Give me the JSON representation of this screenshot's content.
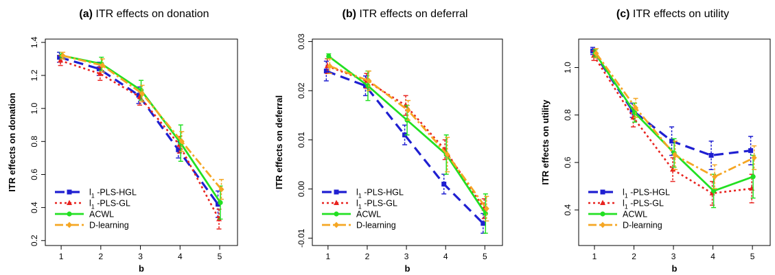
{
  "colors": {
    "hgl": "#1f1fd1",
    "gl": "#e8231f",
    "acwl": "#22e022",
    "dlearn": "#f5a623",
    "axis": "#000000"
  },
  "legend_labels": {
    "hgl": {
      "sym": "l",
      "sub": "1",
      "rest": " -PLS-HGL"
    },
    "gl": {
      "sym": "l",
      "sub": "1",
      "rest": " -PLS-GL"
    },
    "acwl": {
      "text": "ACWL"
    },
    "dlearn": {
      "text": "D-learning"
    }
  },
  "chart_data": [
    {
      "type": "line",
      "title_prefix": "(a)",
      "title": " ITR effects on donation",
      "xlabel": "b",
      "ylabel": "ITR effects on donation",
      "x": [
        1,
        2,
        3,
        4,
        5
      ],
      "xticks": [
        "1",
        "2",
        "3",
        "4",
        "5"
      ],
      "ylim": [
        0.17,
        1.42
      ],
      "yticks": [
        0.2,
        0.4,
        0.6,
        0.8,
        1.0,
        1.2,
        1.4
      ],
      "ytick_labels": [
        "0.2",
        "0.4",
        "0.6",
        "0.8",
        "1.0",
        "1.2",
        "1.4"
      ],
      "legend": "bottom-left",
      "series": [
        {
          "key": "hgl",
          "values": [
            1.31,
            1.24,
            1.08,
            0.75,
            0.42
          ],
          "err": [
            0.03,
            0.04,
            0.05,
            0.05,
            0.08
          ]
        },
        {
          "key": "gl",
          "values": [
            1.29,
            1.21,
            1.07,
            0.78,
            0.33
          ],
          "err": [
            0.03,
            0.04,
            0.05,
            0.05,
            0.06
          ]
        },
        {
          "key": "acwl",
          "values": [
            1.32,
            1.27,
            1.11,
            0.79,
            0.43
          ],
          "err": [
            0.02,
            0.04,
            0.06,
            0.11,
            0.1
          ]
        },
        {
          "key": "dlearn",
          "values": [
            1.32,
            1.26,
            1.09,
            0.8,
            0.51
          ],
          "err": [
            0.02,
            0.04,
            0.05,
            0.06,
            0.06
          ]
        }
      ]
    },
    {
      "type": "line",
      "title_prefix": "(b)",
      "title": " ITR effects on deferral",
      "xlabel": "b",
      "ylabel": "ITR effects on deferral",
      "x": [
        1,
        2,
        3,
        4,
        5
      ],
      "xticks": [
        "1",
        "2",
        "3",
        "4",
        "5"
      ],
      "ylim": [
        -0.0115,
        0.0305
      ],
      "yticks": [
        -0.01,
        0.0,
        0.01,
        0.02,
        0.03
      ],
      "ytick_labels": [
        "-0.01",
        "0.00",
        "0.01",
        "0.02",
        "0.03"
      ],
      "legend": "bottom-left",
      "series": [
        {
          "key": "hgl",
          "values": [
            0.024,
            0.021,
            0.011,
            0.001,
            -0.007
          ],
          "err": [
            0.002,
            0.002,
            0.002,
            0.002,
            0.002
          ]
        },
        {
          "key": "gl",
          "values": [
            0.025,
            0.022,
            0.017,
            0.008,
            -0.004
          ],
          "err": [
            0.0015,
            0.0015,
            0.002,
            0.002,
            0.002
          ]
        },
        {
          "key": "acwl",
          "values": [
            0.027,
            0.021,
            0.014,
            0.007,
            -0.005
          ],
          "err": [
            0.0005,
            0.003,
            0.003,
            0.004,
            0.004
          ]
        },
        {
          "key": "dlearn",
          "values": [
            0.025,
            0.022,
            0.016,
            0.007,
            -0.004
          ],
          "err": [
            0.0015,
            0.002,
            0.002,
            0.0035,
            0.0025
          ]
        }
      ]
    },
    {
      "type": "line",
      "title_prefix": "(c)",
      "title": " ITR effects on utility",
      "xlabel": "b",
      "ylabel": "ITR effects on utility",
      "x": [
        1,
        2,
        3,
        4,
        5
      ],
      "xticks": [
        "1",
        "2",
        "3",
        "4",
        "5"
      ],
      "ylim": [
        0.25,
        1.12
      ],
      "yticks": [
        0.4,
        0.6,
        0.8,
        1.0
      ],
      "ytick_labels": [
        "0.4",
        "0.6",
        "0.8",
        "1.0"
      ],
      "legend": "bottom-left",
      "series": [
        {
          "key": "hgl",
          "values": [
            1.07,
            0.82,
            0.69,
            0.63,
            0.65
          ],
          "err": [
            0.015,
            0.03,
            0.06,
            0.06,
            0.06
          ]
        },
        {
          "key": "gl",
          "values": [
            1.05,
            0.79,
            0.57,
            0.47,
            0.49
          ],
          "err": [
            0.02,
            0.04,
            0.05,
            0.05,
            0.06
          ]
        },
        {
          "key": "acwl",
          "values": [
            1.06,
            0.81,
            0.64,
            0.48,
            0.54
          ],
          "err": [
            0.015,
            0.04,
            0.06,
            0.07,
            0.09
          ]
        },
        {
          "key": "dlearn",
          "values": [
            1.06,
            0.83,
            0.63,
            0.54,
            0.62
          ],
          "err": [
            0.02,
            0.04,
            0.06,
            0.05,
            0.05
          ]
        }
      ]
    }
  ]
}
